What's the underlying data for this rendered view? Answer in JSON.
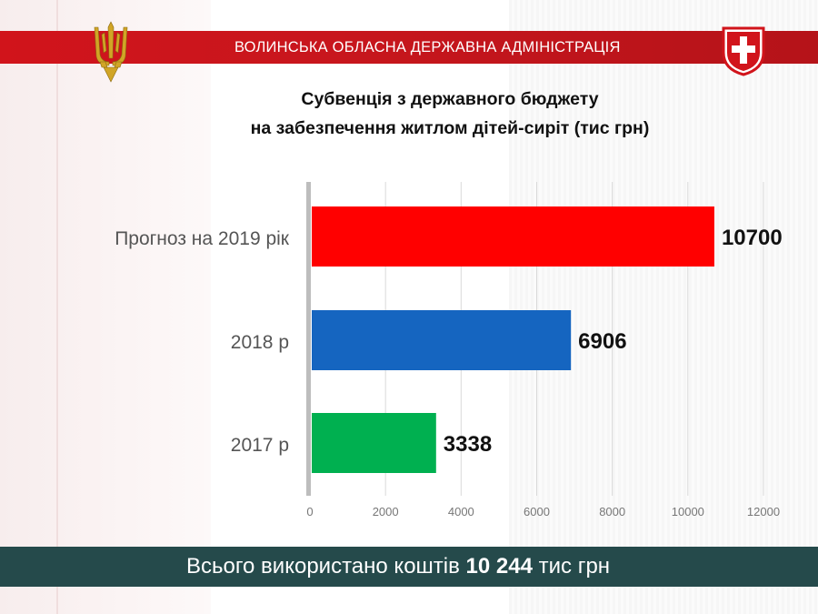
{
  "header": {
    "title": "ВОЛИНСЬКА ОБЛАСНА ДЕРЖАВНА АДМІНІСТРАЦІЯ",
    "trident_icon": "trident-icon",
    "coat_of_arms_icon": "volyn-coat-of-arms-icon"
  },
  "colors": {
    "header_red": "#d1141b",
    "footer_dark": "#254a4b",
    "bar_2019": "#ff0000",
    "bar_2018": "#1565c0",
    "bar_2017": "#00b050"
  },
  "chart_data": {
    "type": "bar",
    "orientation": "horizontal",
    "title_line1": "Субвенція з державного бюджету",
    "title_line2": "на забезпечення житлом дітей-сиріт (тис грн)",
    "categories": [
      "Прогноз на 2019 рік",
      "2018 р",
      "2017 р"
    ],
    "values": [
      10700,
      6906,
      3338
    ],
    "data_labels": [
      "10700",
      "6906",
      "3338"
    ],
    "xlim": [
      0,
      12000
    ],
    "x_ticks": [
      "0",
      "2000",
      "4000",
      "6000",
      "8000",
      "10000",
      "12000"
    ],
    "grid": "vertical"
  },
  "footer": {
    "prefix": "Всього використано коштів",
    "amount": "10 244",
    "suffix": "тис грн"
  }
}
